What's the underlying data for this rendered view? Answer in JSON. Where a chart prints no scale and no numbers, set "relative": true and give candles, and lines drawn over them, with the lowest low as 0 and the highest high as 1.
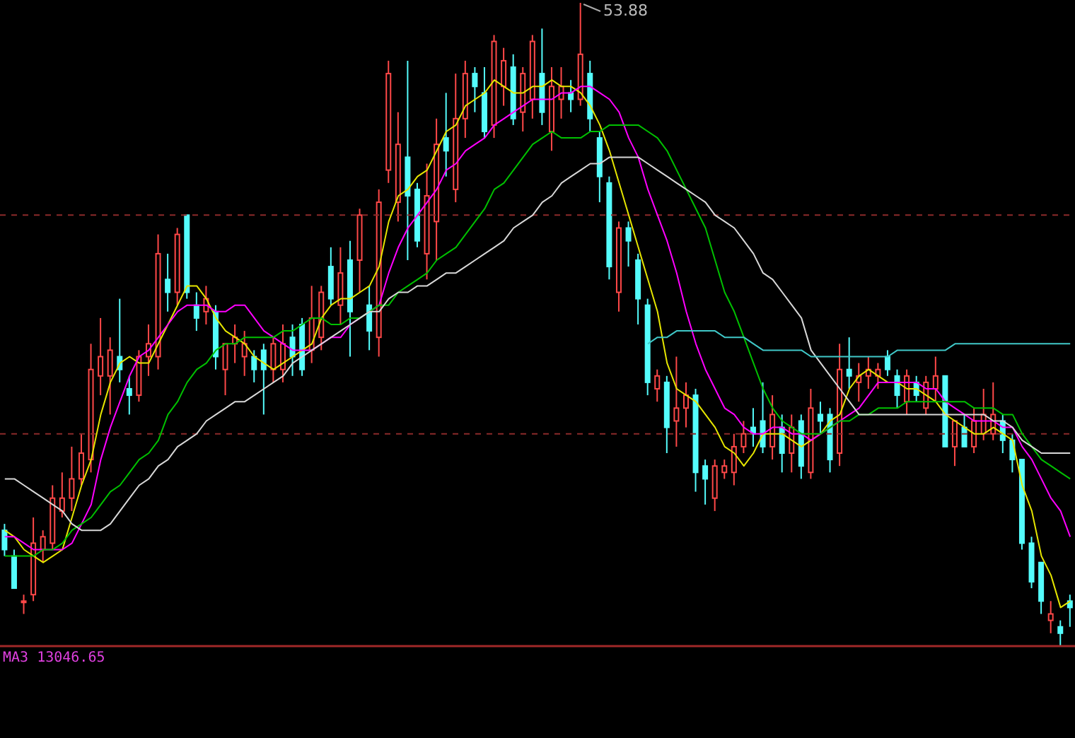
{
  "chart_data": {
    "type": "candlestick",
    "relative": true,
    "marker": "none",
    "line_style": "solid",
    "categories": [
      null,
      null,
      null,
      null,
      null,
      null,
      null,
      null,
      null,
      null,
      null,
      null,
      null,
      null,
      null,
      null,
      null,
      null,
      null,
      null,
      null,
      null,
      null,
      null,
      null,
      null,
      null,
      null,
      null,
      null,
      null,
      null,
      null,
      null,
      null,
      null,
      null,
      null,
      null,
      null,
      null,
      null,
      null,
      null,
      null,
      null,
      null,
      null,
      null,
      null,
      null,
      null,
      null,
      null,
      null,
      null,
      null,
      null,
      null,
      null,
      null,
      null,
      null,
      null,
      null,
      null,
      null,
      null,
      null,
      null,
      null,
      null,
      null,
      null,
      null,
      null,
      null,
      null,
      null,
      null,
      null,
      null,
      null,
      null,
      null,
      null,
      null,
      null,
      null,
      null,
      null,
      null,
      null,
      null,
      null,
      null,
      null,
      null,
      null,
      null,
      null,
      null,
      null,
      null,
      null,
      null,
      null,
      null,
      null,
      null,
      null,
      null
    ],
    "ohlc": [
      [
        0.18,
        0.19,
        0.14,
        0.15
      ],
      [
        0.14,
        0.15,
        0.09,
        0.09
      ],
      [
        0.07,
        0.08,
        0.05,
        0.07
      ],
      [
        0.08,
        0.2,
        0.07,
        0.16
      ],
      [
        0.15,
        0.18,
        0.13,
        0.17
      ],
      [
        0.16,
        0.25,
        0.15,
        0.23
      ],
      [
        0.21,
        0.27,
        0.2,
        0.23
      ],
      [
        0.23,
        0.31,
        0.21,
        0.26
      ],
      [
        0.26,
        0.33,
        0.25,
        0.3
      ],
      [
        0.29,
        0.47,
        0.27,
        0.43
      ],
      [
        0.42,
        0.51,
        0.39,
        0.45
      ],
      [
        0.42,
        0.48,
        0.36,
        0.46
      ],
      [
        0.45,
        0.54,
        0.41,
        0.43
      ],
      [
        0.4,
        0.42,
        0.36,
        0.39
      ],
      [
        0.39,
        0.46,
        0.38,
        0.45
      ],
      [
        0.45,
        0.5,
        0.42,
        0.47
      ],
      [
        0.45,
        0.64,
        0.43,
        0.61
      ],
      [
        0.57,
        0.61,
        0.52,
        0.55
      ],
      [
        0.55,
        0.65,
        0.53,
        0.64
      ],
      [
        0.67,
        0.67,
        0.54,
        0.55
      ],
      [
        0.53,
        0.55,
        0.49,
        0.51
      ],
      [
        0.52,
        0.56,
        0.5,
        0.54
      ],
      [
        0.52,
        0.53,
        0.43,
        0.45
      ],
      [
        0.43,
        0.47,
        0.39,
        0.47
      ],
      [
        0.47,
        0.5,
        0.44,
        0.48
      ],
      [
        0.45,
        0.49,
        0.42,
        0.47
      ],
      [
        0.45,
        0.46,
        0.41,
        0.43
      ],
      [
        0.46,
        0.47,
        0.36,
        0.43
      ],
      [
        0.43,
        0.48,
        0.41,
        0.47
      ],
      [
        0.43,
        0.5,
        0.41,
        0.47
      ],
      [
        0.48,
        0.5,
        0.42,
        0.45
      ],
      [
        0.5,
        0.51,
        0.42,
        0.43
      ],
      [
        0.46,
        0.56,
        0.44,
        0.51
      ],
      [
        0.48,
        0.56,
        0.46,
        0.55
      ],
      [
        0.59,
        0.62,
        0.53,
        0.54
      ],
      [
        0.53,
        0.62,
        0.5,
        0.58
      ],
      [
        0.6,
        0.63,
        0.45,
        0.52
      ],
      [
        0.6,
        0.68,
        0.55,
        0.67
      ],
      [
        0.53,
        0.56,
        0.46,
        0.49
      ],
      [
        0.48,
        0.71,
        0.45,
        0.69
      ],
      [
        0.74,
        0.91,
        0.72,
        0.89
      ],
      [
        0.69,
        0.83,
        0.66,
        0.78
      ],
      [
        0.76,
        0.91,
        0.6,
        0.7
      ],
      [
        0.71,
        0.72,
        0.62,
        0.63
      ],
      [
        0.61,
        0.75,
        0.57,
        0.7
      ],
      [
        0.66,
        0.82,
        0.6,
        0.78
      ],
      [
        0.79,
        0.86,
        0.73,
        0.77
      ],
      [
        0.71,
        0.89,
        0.69,
        0.82
      ],
      [
        0.82,
        0.91,
        0.79,
        0.89
      ],
      [
        0.89,
        0.9,
        0.83,
        0.87
      ],
      [
        0.86,
        0.9,
        0.79,
        0.8
      ],
      [
        0.81,
        0.95,
        0.79,
        0.94
      ],
      [
        0.87,
        0.93,
        0.84,
        0.91
      ],
      [
        0.9,
        0.92,
        0.81,
        0.82
      ],
      [
        0.83,
        0.9,
        0.8,
        0.89
      ],
      [
        0.85,
        0.95,
        0.82,
        0.94
      ],
      [
        0.89,
        0.96,
        0.81,
        0.83
      ],
      [
        0.8,
        0.9,
        0.77,
        0.87
      ],
      [
        0.85,
        0.9,
        0.82,
        0.87
      ],
      [
        0.86,
        0.88,
        0.83,
        0.85
      ],
      [
        0.85,
        1,
        0.84,
        0.92
      ],
      [
        0.89,
        0.91,
        0.8,
        0.82
      ],
      [
        0.79,
        0.8,
        0.69,
        0.73
      ],
      [
        0.72,
        0.73,
        0.57,
        0.59
      ],
      [
        0.55,
        0.66,
        0.52,
        0.65
      ],
      [
        0.65,
        0.66,
        0.59,
        0.63
      ],
      [
        0.6,
        0.61,
        0.5,
        0.54
      ],
      [
        0.53,
        0.54,
        0.39,
        0.41
      ],
      [
        0.4,
        0.43,
        0.38,
        0.42
      ],
      [
        0.41,
        0.42,
        0.3,
        0.34
      ],
      [
        0.35,
        0.45,
        0.31,
        0.37
      ],
      [
        0.37,
        0.41,
        0.34,
        0.39
      ],
      [
        0.39,
        0.4,
        0.24,
        0.27
      ],
      [
        0.28,
        0.29,
        0.22,
        0.26
      ],
      [
        0.23,
        0.29,
        0.21,
        0.28
      ],
      [
        0.27,
        0.29,
        0.26,
        0.28
      ],
      [
        0.27,
        0.33,
        0.25,
        0.31
      ],
      [
        0.31,
        0.35,
        0.3,
        0.33
      ],
      [
        0.34,
        0.37,
        0.31,
        0.33
      ],
      [
        0.35,
        0.41,
        0.3,
        0.31
      ],
      [
        0.31,
        0.39,
        0.29,
        0.36
      ],
      [
        0.34,
        0.36,
        0.27,
        0.3
      ],
      [
        0.3,
        0.36,
        0.27,
        0.34
      ],
      [
        0.35,
        0.36,
        0.26,
        0.28
      ],
      [
        0.27,
        0.4,
        0.26,
        0.37
      ],
      [
        0.36,
        0.38,
        0.33,
        0.35
      ],
      [
        0.36,
        0.37,
        0.27,
        0.29
      ],
      [
        0.3,
        0.47,
        0.28,
        0.43
      ],
      [
        0.43,
        0.48,
        0.4,
        0.42
      ],
      [
        0.41,
        0.44,
        0.38,
        0.42
      ],
      [
        0.42,
        0.45,
        0.4,
        0.43
      ],
      [
        0.42,
        0.44,
        0.4,
        0.43
      ],
      [
        0.45,
        0.46,
        0.42,
        0.43
      ],
      [
        0.42,
        0.43,
        0.37,
        0.39
      ],
      [
        0.38,
        0.43,
        0.36,
        0.42
      ],
      [
        0.41,
        0.42,
        0.38,
        0.39
      ],
      [
        0.37,
        0.42,
        0.36,
        0.41
      ],
      [
        0.4,
        0.45,
        0.38,
        0.42
      ],
      [
        0.42,
        0.42,
        0.31,
        0.31
      ],
      [
        0.31,
        0.35,
        0.28,
        0.35
      ],
      [
        0.34,
        0.36,
        0.31,
        0.31
      ],
      [
        0.31,
        0.37,
        0.3,
        0.35
      ],
      [
        0.33,
        0.4,
        0.32,
        0.36
      ],
      [
        0.33,
        0.41,
        0.32,
        0.36
      ],
      [
        0.35,
        0.36,
        0.3,
        0.32
      ],
      [
        0.32,
        0.33,
        0.27,
        0.29
      ],
      [
        0.29,
        0.29,
        0.15,
        0.16
      ],
      [
        0.16,
        0.17,
        0.09,
        0.1
      ],
      [
        0.13,
        0.13,
        0.05,
        0.07
      ],
      [
        0.04,
        0.07,
        0.02,
        0.05
      ],
      [
        0.03,
        0.04,
        0,
        0.02
      ],
      [
        0.07,
        0.08,
        0.03,
        0.06
      ]
    ],
    "series": [
      {
        "type": "line",
        "color": "#e6e600",
        "values": [
          0.18,
          0.17,
          0.15,
          0.14,
          0.13,
          0.14,
          0.15,
          0.2,
          0.25,
          0.29,
          0.36,
          0.41,
          0.44,
          0.45,
          0.44,
          0.44,
          0.47,
          0.5,
          0.53,
          0.56,
          0.56,
          0.54,
          0.51,
          0.49,
          0.48,
          0.47,
          0.45,
          0.44,
          0.43,
          0.44,
          0.45,
          0.46,
          0.47,
          0.51,
          0.53,
          0.54,
          0.54,
          0.55,
          0.56,
          0.59,
          0.66,
          0.7,
          0.71,
          0.73,
          0.74,
          0.77,
          0.8,
          0.81,
          0.84,
          0.85,
          0.86,
          0.88,
          0.87,
          0.86,
          0.86,
          0.87,
          0.87,
          0.88,
          0.87,
          0.87,
          0.86,
          0.84,
          0.81,
          0.77,
          0.72,
          0.67,
          0.62,
          0.57,
          0.52,
          0.44,
          0.4,
          0.39,
          0.38,
          0.36,
          0.34,
          0.31,
          0.3,
          0.28,
          0.3,
          0.33,
          0.33,
          0.33,
          0.32,
          0.31,
          0.32,
          0.33,
          0.35,
          0.36,
          0.4,
          0.42,
          0.43,
          0.42,
          0.41,
          0.41,
          0.4,
          0.4,
          0.39,
          0.38,
          0.36,
          0.35,
          0.34,
          0.33,
          0.33,
          0.34,
          0.33,
          0.32,
          0.25,
          0.21,
          0.14,
          0.11,
          0.06,
          0.07
        ]
      },
      {
        "type": "line",
        "color": "#ff00ff",
        "values": [
          0.17,
          0.17,
          0.16,
          0.15,
          0.15,
          0.15,
          0.15,
          0.16,
          0.19,
          0.22,
          0.29,
          0.34,
          0.38,
          0.42,
          0.45,
          0.46,
          0.48,
          0.5,
          0.52,
          0.53,
          0.53,
          0.53,
          0.52,
          0.52,
          0.53,
          0.53,
          0.51,
          0.49,
          0.48,
          0.47,
          0.46,
          0.46,
          0.46,
          0.47,
          0.48,
          0.48,
          0.5,
          0.51,
          0.52,
          0.53,
          0.58,
          0.62,
          0.65,
          0.67,
          0.69,
          0.71,
          0.74,
          0.75,
          0.77,
          0.78,
          0.79,
          0.81,
          0.82,
          0.83,
          0.84,
          0.85,
          0.85,
          0.85,
          0.86,
          0.86,
          0.87,
          0.87,
          0.86,
          0.85,
          0.83,
          0.79,
          0.76,
          0.71,
          0.67,
          0.63,
          0.58,
          0.52,
          0.47,
          0.43,
          0.4,
          0.37,
          0.36,
          0.34,
          0.33,
          0.33,
          0.34,
          0.34,
          0.33,
          0.33,
          0.32,
          0.33,
          0.34,
          0.35,
          0.36,
          0.37,
          0.39,
          0.41,
          0.41,
          0.41,
          0.41,
          0.41,
          0.4,
          0.4,
          0.38,
          0.37,
          0.36,
          0.35,
          0.35,
          0.35,
          0.34,
          0.34,
          0.31,
          0.29,
          0.26,
          0.23,
          0.21,
          0.17
        ]
      },
      {
        "type": "line",
        "color": "#00c000",
        "values": [
          0.14,
          0.14,
          0.14,
          0.14,
          0.15,
          0.15,
          0.16,
          0.18,
          0.19,
          0.2,
          0.22,
          0.24,
          0.25,
          0.27,
          0.29,
          0.3,
          0.32,
          0.36,
          0.38,
          0.41,
          0.43,
          0.44,
          0.46,
          0.47,
          0.47,
          0.48,
          0.48,
          0.48,
          0.48,
          0.49,
          0.49,
          0.5,
          0.51,
          0.51,
          0.5,
          0.5,
          0.51,
          0.51,
          0.52,
          0.53,
          0.53,
          0.55,
          0.56,
          0.57,
          0.58,
          0.6,
          0.61,
          0.62,
          0.64,
          0.66,
          0.68,
          0.71,
          0.72,
          0.74,
          0.76,
          0.78,
          0.79,
          0.8,
          0.79,
          0.79,
          0.79,
          0.8,
          0.8,
          0.81,
          0.81,
          0.81,
          0.81,
          0.8,
          0.79,
          0.77,
          0.74,
          0.71,
          0.68,
          0.65,
          0.6,
          0.55,
          0.52,
          0.48,
          0.44,
          0.4,
          0.37,
          0.35,
          0.34,
          0.33,
          0.33,
          0.33,
          0.34,
          0.35,
          0.35,
          0.36,
          0.36,
          0.37,
          0.37,
          0.37,
          0.38,
          0.38,
          0.38,
          0.38,
          0.38,
          0.38,
          0.38,
          0.37,
          0.37,
          0.37,
          0.36,
          0.36,
          0.33,
          0.31,
          0.29,
          0.28,
          0.27,
          0.26
        ]
      },
      {
        "type": "line",
        "color": "#d8d8d8",
        "values": [
          0.26,
          0.26,
          0.25,
          0.24,
          0.23,
          0.22,
          0.21,
          0.19,
          0.18,
          0.18,
          0.18,
          0.19,
          0.21,
          0.23,
          0.25,
          0.26,
          0.28,
          0.29,
          0.31,
          0.32,
          0.33,
          0.35,
          0.36,
          0.37,
          0.38,
          0.38,
          0.39,
          0.4,
          0.41,
          0.42,
          0.44,
          0.45,
          0.46,
          0.47,
          0.48,
          0.49,
          0.5,
          0.51,
          0.52,
          0.52,
          0.54,
          0.55,
          0.55,
          0.56,
          0.56,
          0.57,
          0.58,
          0.58,
          0.59,
          0.6,
          0.61,
          0.62,
          0.63,
          0.65,
          0.66,
          0.67,
          0.69,
          0.7,
          0.72,
          0.73,
          0.74,
          0.75,
          0.75,
          0.76,
          0.76,
          0.76,
          0.76,
          0.75,
          0.74,
          0.73,
          0.72,
          0.71,
          0.7,
          0.69,
          0.67,
          0.66,
          0.65,
          0.63,
          0.61,
          0.58,
          0.57,
          0.55,
          0.53,
          0.51,
          0.46,
          0.44,
          0.42,
          0.4,
          0.38,
          0.36,
          0.36,
          0.36,
          0.36,
          0.36,
          0.36,
          0.36,
          0.36,
          0.36,
          0.36,
          0.36,
          0.36,
          0.36,
          0.36,
          0.35,
          0.35,
          0.34,
          0.32,
          0.31,
          0.3,
          0.3,
          0.3,
          0.3
        ]
      },
      {
        "type": "line",
        "color": "#40c8c8",
        "values": [
          null,
          null,
          null,
          null,
          null,
          null,
          null,
          null,
          null,
          null,
          null,
          null,
          null,
          null,
          null,
          null,
          null,
          null,
          null,
          null,
          null,
          null,
          null,
          null,
          null,
          null,
          null,
          null,
          null,
          null,
          null,
          null,
          null,
          null,
          null,
          null,
          null,
          null,
          null,
          null,
          null,
          null,
          null,
          null,
          null,
          null,
          null,
          null,
          null,
          null,
          null,
          null,
          null,
          null,
          null,
          null,
          null,
          null,
          null,
          null,
          null,
          null,
          null,
          null,
          null,
          null,
          null,
          0.47,
          0.48,
          0.48,
          0.49,
          0.49,
          0.49,
          0.49,
          0.49,
          0.48,
          0.48,
          0.48,
          0.47,
          0.46,
          0.46,
          0.46,
          0.46,
          0.46,
          0.45,
          0.45,
          0.45,
          0.45,
          0.45,
          0.45,
          0.45,
          0.45,
          0.45,
          0.46,
          0.46,
          0.46,
          0.46,
          0.46,
          0.46,
          0.47,
          0.47,
          0.47,
          0.47,
          0.47,
          0.47,
          0.47,
          0.47,
          0.47,
          0.47,
          0.47,
          0.47,
          0.47
        ]
      }
    ],
    "ref_lines": [
      {
        "axis": "y",
        "value": 0.67,
        "color": "#8b2a2a",
        "line_style": "dashed"
      },
      {
        "axis": "y",
        "value": 0.33,
        "color": "#8b2a2a",
        "line_style": "dashed"
      }
    ],
    "annotations": [
      "53.88",
      "MA3 13046.65"
    ]
  }
}
